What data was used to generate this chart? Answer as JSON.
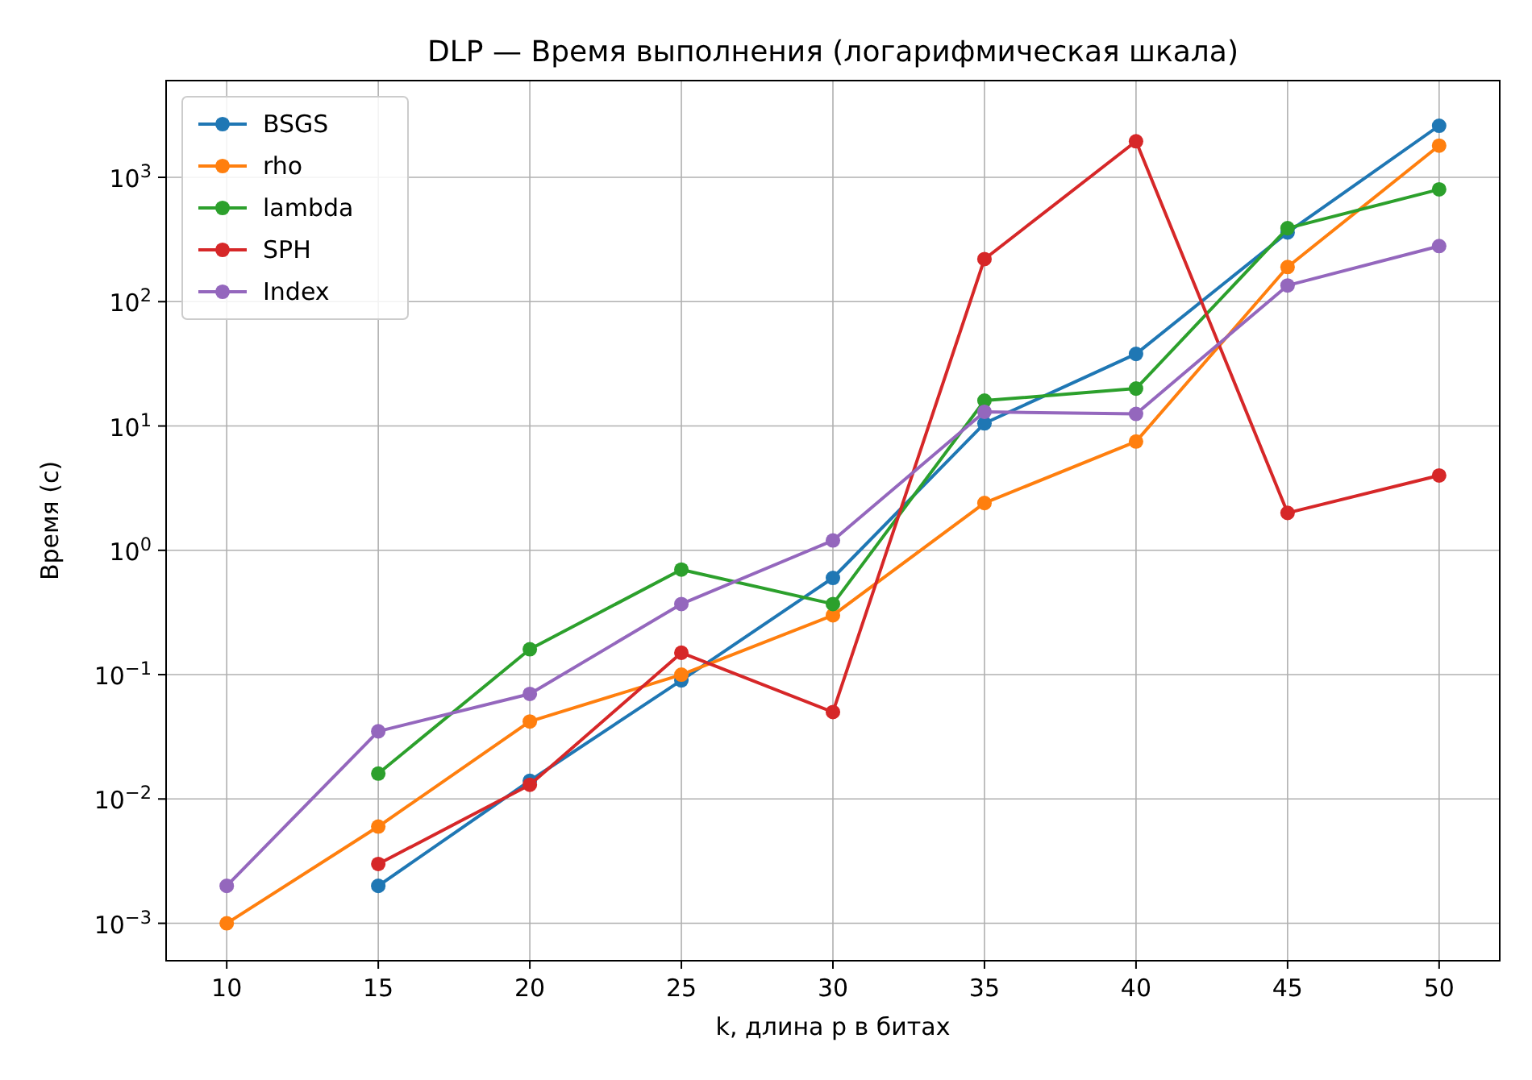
{
  "chart_data": {
    "type": "line",
    "title": "DLP — Время выполнения (логарифмическая шкала)",
    "xlabel": "k, длина p в битах",
    "ylabel": "Время (с)",
    "x": [
      10,
      15,
      20,
      25,
      30,
      35,
      40,
      45,
      50
    ],
    "series": [
      {
        "name": "BSGS",
        "color": "#1f77b4",
        "values": [
          null,
          0.002,
          0.014,
          0.09,
          0.6,
          10.5,
          38,
          360,
          2600
        ]
      },
      {
        "name": "rho",
        "color": "#ff7f0e",
        "values": [
          0.001,
          0.006,
          0.042,
          0.1,
          0.3,
          2.4,
          7.5,
          190,
          1800
        ]
      },
      {
        "name": "lambda",
        "color": "#2ca02c",
        "values": [
          null,
          0.016,
          0.16,
          0.7,
          0.37,
          16,
          20,
          390,
          800
        ]
      },
      {
        "name": "SPH",
        "color": "#d62728",
        "values": [
          null,
          0.003,
          0.013,
          0.15,
          0.05,
          220,
          1950,
          2,
          4
        ]
      },
      {
        "name": "Index",
        "color": "#9467bd",
        "values": [
          0.002,
          0.035,
          0.07,
          0.37,
          1.2,
          13,
          12.5,
          135,
          280
        ]
      }
    ],
    "xlim": [
      8,
      52
    ],
    "xticks": [
      10,
      15,
      20,
      25,
      30,
      35,
      40,
      45,
      50
    ],
    "ylim": [
      0.0005,
      6000
    ],
    "yticks": [
      {
        "value": 0.001,
        "label": "10$^{−3}$"
      },
      {
        "value": 0.01,
        "label": "10$^{−2}$"
      },
      {
        "value": 0.1,
        "label": "10$^{−1}$"
      },
      {
        "value": 1,
        "label": "10$^{0}$"
      },
      {
        "value": 10,
        "label": "10$^{1}$"
      },
      {
        "value": 100,
        "label": "10$^{2}$"
      },
      {
        "value": 1000,
        "label": "10$^{3}$"
      }
    ],
    "log": true,
    "grid": true,
    "legend": "top left",
    "marker": "circle",
    "line_style": "solid"
  }
}
